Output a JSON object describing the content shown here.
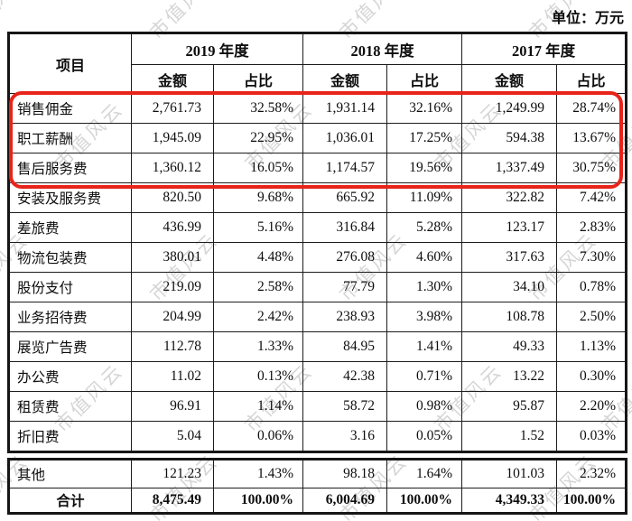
{
  "unit_label": "单位：万元",
  "watermark": {
    "text": "市值风云"
  },
  "highlight_color": "#e8231a",
  "table": {
    "item_header": "项目",
    "year_headers": [
      "2019 年度",
      "2018 年度",
      "2017 年度"
    ],
    "sub_headers": [
      "金额",
      "占比"
    ],
    "rows": [
      {
        "label": "销售佣金",
        "highlighted": true,
        "values": [
          "2,761.73",
          "32.58%",
          "1,931.14",
          "32.16%",
          "1,249.99",
          "28.74%"
        ]
      },
      {
        "label": "职工薪酬",
        "highlighted": true,
        "values": [
          "1,945.09",
          "22.95%",
          "1,036.01",
          "17.25%",
          "594.38",
          "13.67%"
        ]
      },
      {
        "label": "售后服务费",
        "highlighted": true,
        "values": [
          "1,360.12",
          "16.05%",
          "1,174.57",
          "19.56%",
          "1,337.49",
          "30.75%"
        ]
      },
      {
        "label": "安装及服务费",
        "highlighted": false,
        "values": [
          "820.50",
          "9.68%",
          "665.92",
          "11.09%",
          "322.82",
          "7.42%"
        ]
      },
      {
        "label": "差旅费",
        "highlighted": false,
        "values": [
          "436.99",
          "5.16%",
          "316.84",
          "5.28%",
          "123.17",
          "2.83%"
        ]
      },
      {
        "label": "物流包装费",
        "highlighted": false,
        "values": [
          "380.01",
          "4.48%",
          "276.08",
          "4.60%",
          "317.63",
          "7.30%"
        ]
      },
      {
        "label": "股份支付",
        "highlighted": false,
        "values": [
          "219.09",
          "2.58%",
          "77.79",
          "1.30%",
          "34.10",
          "0.78%"
        ]
      },
      {
        "label": "业务招待费",
        "highlighted": false,
        "values": [
          "204.99",
          "2.42%",
          "238.93",
          "3.98%",
          "108.78",
          "2.50%"
        ]
      },
      {
        "label": "展览广告费",
        "highlighted": false,
        "values": [
          "112.78",
          "1.33%",
          "84.95",
          "1.41%",
          "49.33",
          "1.13%"
        ]
      },
      {
        "label": "办公费",
        "highlighted": false,
        "values": [
          "11.02",
          "0.13%",
          "42.38",
          "0.71%",
          "13.22",
          "0.30%"
        ]
      },
      {
        "label": "租赁费",
        "highlighted": false,
        "values": [
          "96.91",
          "1.14%",
          "58.72",
          "0.98%",
          "95.87",
          "2.20%"
        ]
      },
      {
        "label": "折旧费",
        "highlighted": false,
        "values": [
          "5.04",
          "0.06%",
          "3.16",
          "0.05%",
          "1.52",
          "0.03%"
        ]
      }
    ],
    "footer_rows": [
      {
        "label": "其他",
        "total": false,
        "values": [
          "121.23",
          "1.43%",
          "98.18",
          "1.64%",
          "101.03",
          "2.32%"
        ]
      },
      {
        "label": "合计",
        "total": true,
        "values": [
          "8,475.49",
          "100.00%",
          "6,004.69",
          "100.00%",
          "4,349.33",
          "100.00%"
        ]
      }
    ]
  }
}
